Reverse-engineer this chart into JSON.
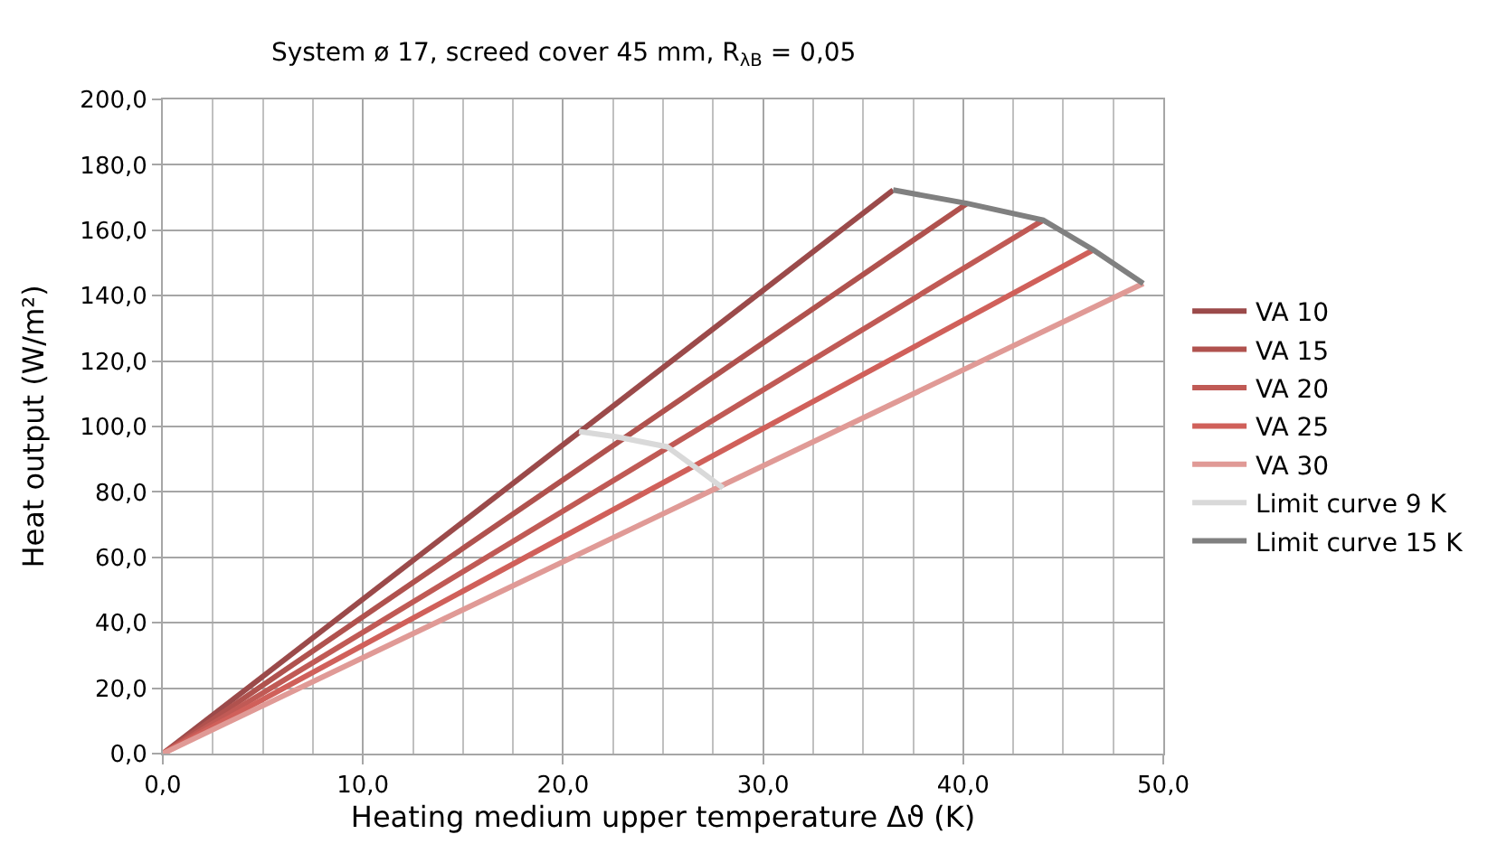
{
  "chart_data": {
    "type": "line",
    "title": "System ø 17, screed cover 45 mm, R$_{λB}$ = 0,05",
    "xlabel": "Heating medium upper temperature Δϑ (K)",
    "ylabel": "Heat output (W/m²)",
    "xlim": [
      0,
      50
    ],
    "ylim": [
      0,
      200
    ],
    "xticks": [
      {
        "value": 0,
        "label": "0,0"
      },
      {
        "value": 10,
        "label": "10,0"
      },
      {
        "value": 20,
        "label": "20,0"
      },
      {
        "value": 30,
        "label": "30,0"
      },
      {
        "value": 40,
        "label": "40,0"
      },
      {
        "value": 50,
        "label": "50,0"
      }
    ],
    "yticks": [
      {
        "value": 0,
        "label": "0,0"
      },
      {
        "value": 20,
        "label": "20,0"
      },
      {
        "value": 40,
        "label": "40,0"
      },
      {
        "value": 60,
        "label": "60,0"
      },
      {
        "value": 80,
        "label": "80,0"
      },
      {
        "value": 100,
        "label": "100,0"
      },
      {
        "value": 120,
        "label": "120,0"
      },
      {
        "value": 140,
        "label": "140,0"
      },
      {
        "value": 160,
        "label": "160,0"
      },
      {
        "value": 180,
        "label": "180,0"
      },
      {
        "value": 200,
        "label": "200,0"
      }
    ],
    "grid": true,
    "legend": "right",
    "marker": "none",
    "line_style": "solid",
    "series": [
      {
        "name": "VA 10",
        "color": "#9b4a4a",
        "x": [
          0,
          36.5
        ],
        "values": [
          0,
          172.3
        ]
      },
      {
        "name": "VA 15",
        "color": "#b0524e",
        "x": [
          0,
          40.2
        ],
        "values": [
          0,
          168.2
        ]
      },
      {
        "name": "VA 20",
        "color": "#c05a55",
        "x": [
          0,
          44.0
        ],
        "values": [
          0,
          163.1
        ]
      },
      {
        "name": "VA 25",
        "color": "#d0605a",
        "x": [
          0,
          46.5
        ],
        "values": [
          0,
          154.0
        ]
      },
      {
        "name": "VA 30",
        "color": "#e09a96",
        "x": [
          0,
          49.0
        ],
        "values": [
          0,
          143.7
        ]
      },
      {
        "name": "Limit curve 9 K",
        "color": "#d9d9d9",
        "x": [
          20.8,
          22.7,
          25.2,
          26.6,
          28.0
        ],
        "values": [
          98.5,
          96.8,
          93.8,
          87.6,
          81.2
        ]
      },
      {
        "name": "Limit curve 15 K",
        "color": "#808080",
        "x": [
          36.5,
          40.2,
          44.0,
          46.5,
          49.0
        ],
        "values": [
          172.3,
          168.2,
          163.1,
          154.0,
          143.7
        ]
      }
    ]
  }
}
